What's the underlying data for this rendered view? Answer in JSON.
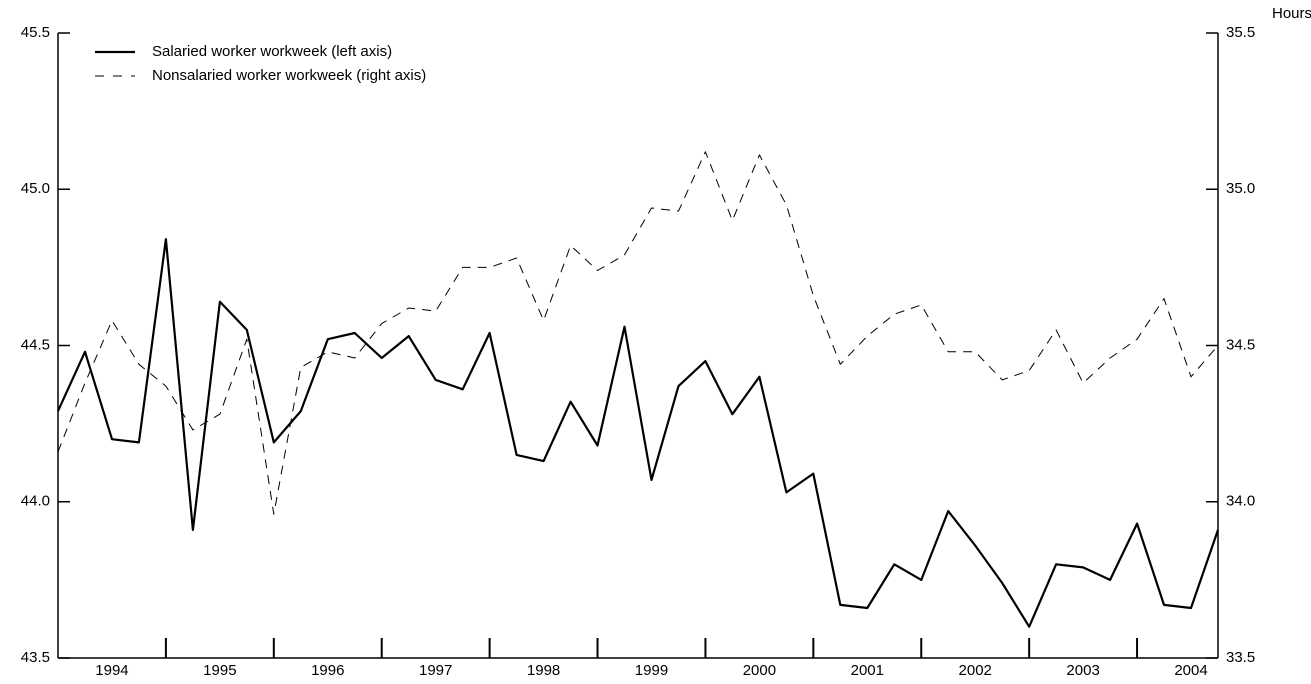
{
  "chart_data": {
    "type": "line",
    "y2_axis_label": "Hours",
    "x": [
      1994,
      1994.25,
      1994.5,
      1994.75,
      1995,
      1995.25,
      1995.5,
      1995.75,
      1996,
      1996.25,
      1996.5,
      1996.75,
      1997,
      1997.25,
      1997.5,
      1997.75,
      1998,
      1998.25,
      1998.5,
      1998.75,
      1999,
      1999.25,
      1999.5,
      1999.75,
      2000,
      2000.25,
      2000.5,
      2000.75,
      2001,
      2001.25,
      2001.5,
      2001.75,
      2002,
      2002.25,
      2002.5,
      2002.75,
      2003,
      2003.25,
      2003.5,
      2003.75,
      2004,
      2004.25,
      2004.5,
      2004.75
    ],
    "xlim": [
      1994,
      2004.75
    ],
    "xticks": [
      {
        "value": 1994.5,
        "label": "1994"
      },
      {
        "value": 1995.5,
        "label": "1995"
      },
      {
        "value": 1996.5,
        "label": "1996"
      },
      {
        "value": 1997.5,
        "label": "1997"
      },
      {
        "value": 1998.5,
        "label": "1998"
      },
      {
        "value": 1999.5,
        "label": "1999"
      },
      {
        "value": 2000.5,
        "label": "2000"
      },
      {
        "value": 2001.5,
        "label": "2001"
      },
      {
        "value": 2002.5,
        "label": "2002"
      },
      {
        "value": 2003.5,
        "label": "2003"
      },
      {
        "value": 2004.5,
        "label": "2004"
      }
    ],
    "x_minor_ticks": [
      1995,
      1996,
      1997,
      1998,
      1999,
      2000,
      2001,
      2002,
      2003,
      2004
    ],
    "ylim": [
      43.5,
      45.5
    ],
    "yticks": [
      {
        "value": 43.5,
        "label": "43.5"
      },
      {
        "value": 44,
        "label": "44.0"
      },
      {
        "value": 44.5,
        "label": "44.5"
      },
      {
        "value": 45,
        "label": "45.0"
      },
      {
        "value": 45.5,
        "label": "45.5"
      }
    ],
    "y2lim": [
      33.5,
      35.5
    ],
    "y2ticks": [
      {
        "value": 33.5,
        "label": "33.5"
      },
      {
        "value": 34,
        "label": "34.0"
      },
      {
        "value": 34.5,
        "label": "34.5"
      },
      {
        "value": 35,
        "label": "35.0"
      },
      {
        "value": 35.5,
        "label": "35.5"
      }
    ],
    "series": [
      {
        "name": "Salaried worker workweek (left axis)",
        "color": "#000000",
        "dash": false,
        "values": [
          44.29,
          44.48,
          44.2,
          44.19,
          44.84,
          43.91,
          44.64,
          44.55,
          44.19,
          44.29,
          44.52,
          44.54,
          44.46,
          44.53,
          44.39,
          44.36,
          44.54,
          44.15,
          44.13,
          44.32,
          44.18,
          44.56,
          44.07,
          44.37,
          44.45,
          44.28,
          44.4,
          44.03,
          44.09,
          43.67,
          43.66,
          43.8,
          43.75,
          43.97,
          43.86,
          43.74,
          43.6,
          43.8,
          43.79,
          43.75,
          43.93,
          43.67,
          43.66,
          43.91
        ]
      },
      {
        "name": "Nonsalaried worker workweek (right axis)",
        "color": "#000000",
        "dash": true,
        "axis": "y2",
        "values": [
          34.16,
          34.38,
          34.58,
          34.44,
          34.37,
          34.23,
          34.28,
          34.52,
          33.96,
          34.43,
          34.48,
          34.46,
          34.57,
          34.62,
          34.61,
          34.75,
          34.75,
          34.78,
          34.58,
          34.82,
          34.74,
          34.79,
          34.94,
          34.93,
          35.12,
          34.9,
          35.11,
          34.95,
          34.66,
          34.44,
          34.53,
          34.6,
          34.63,
          34.48,
          34.48,
          34.39,
          34.42,
          34.55,
          34.38,
          34.46,
          34.52,
          34.65,
          34.4,
          34.5
        ]
      }
    ]
  }
}
